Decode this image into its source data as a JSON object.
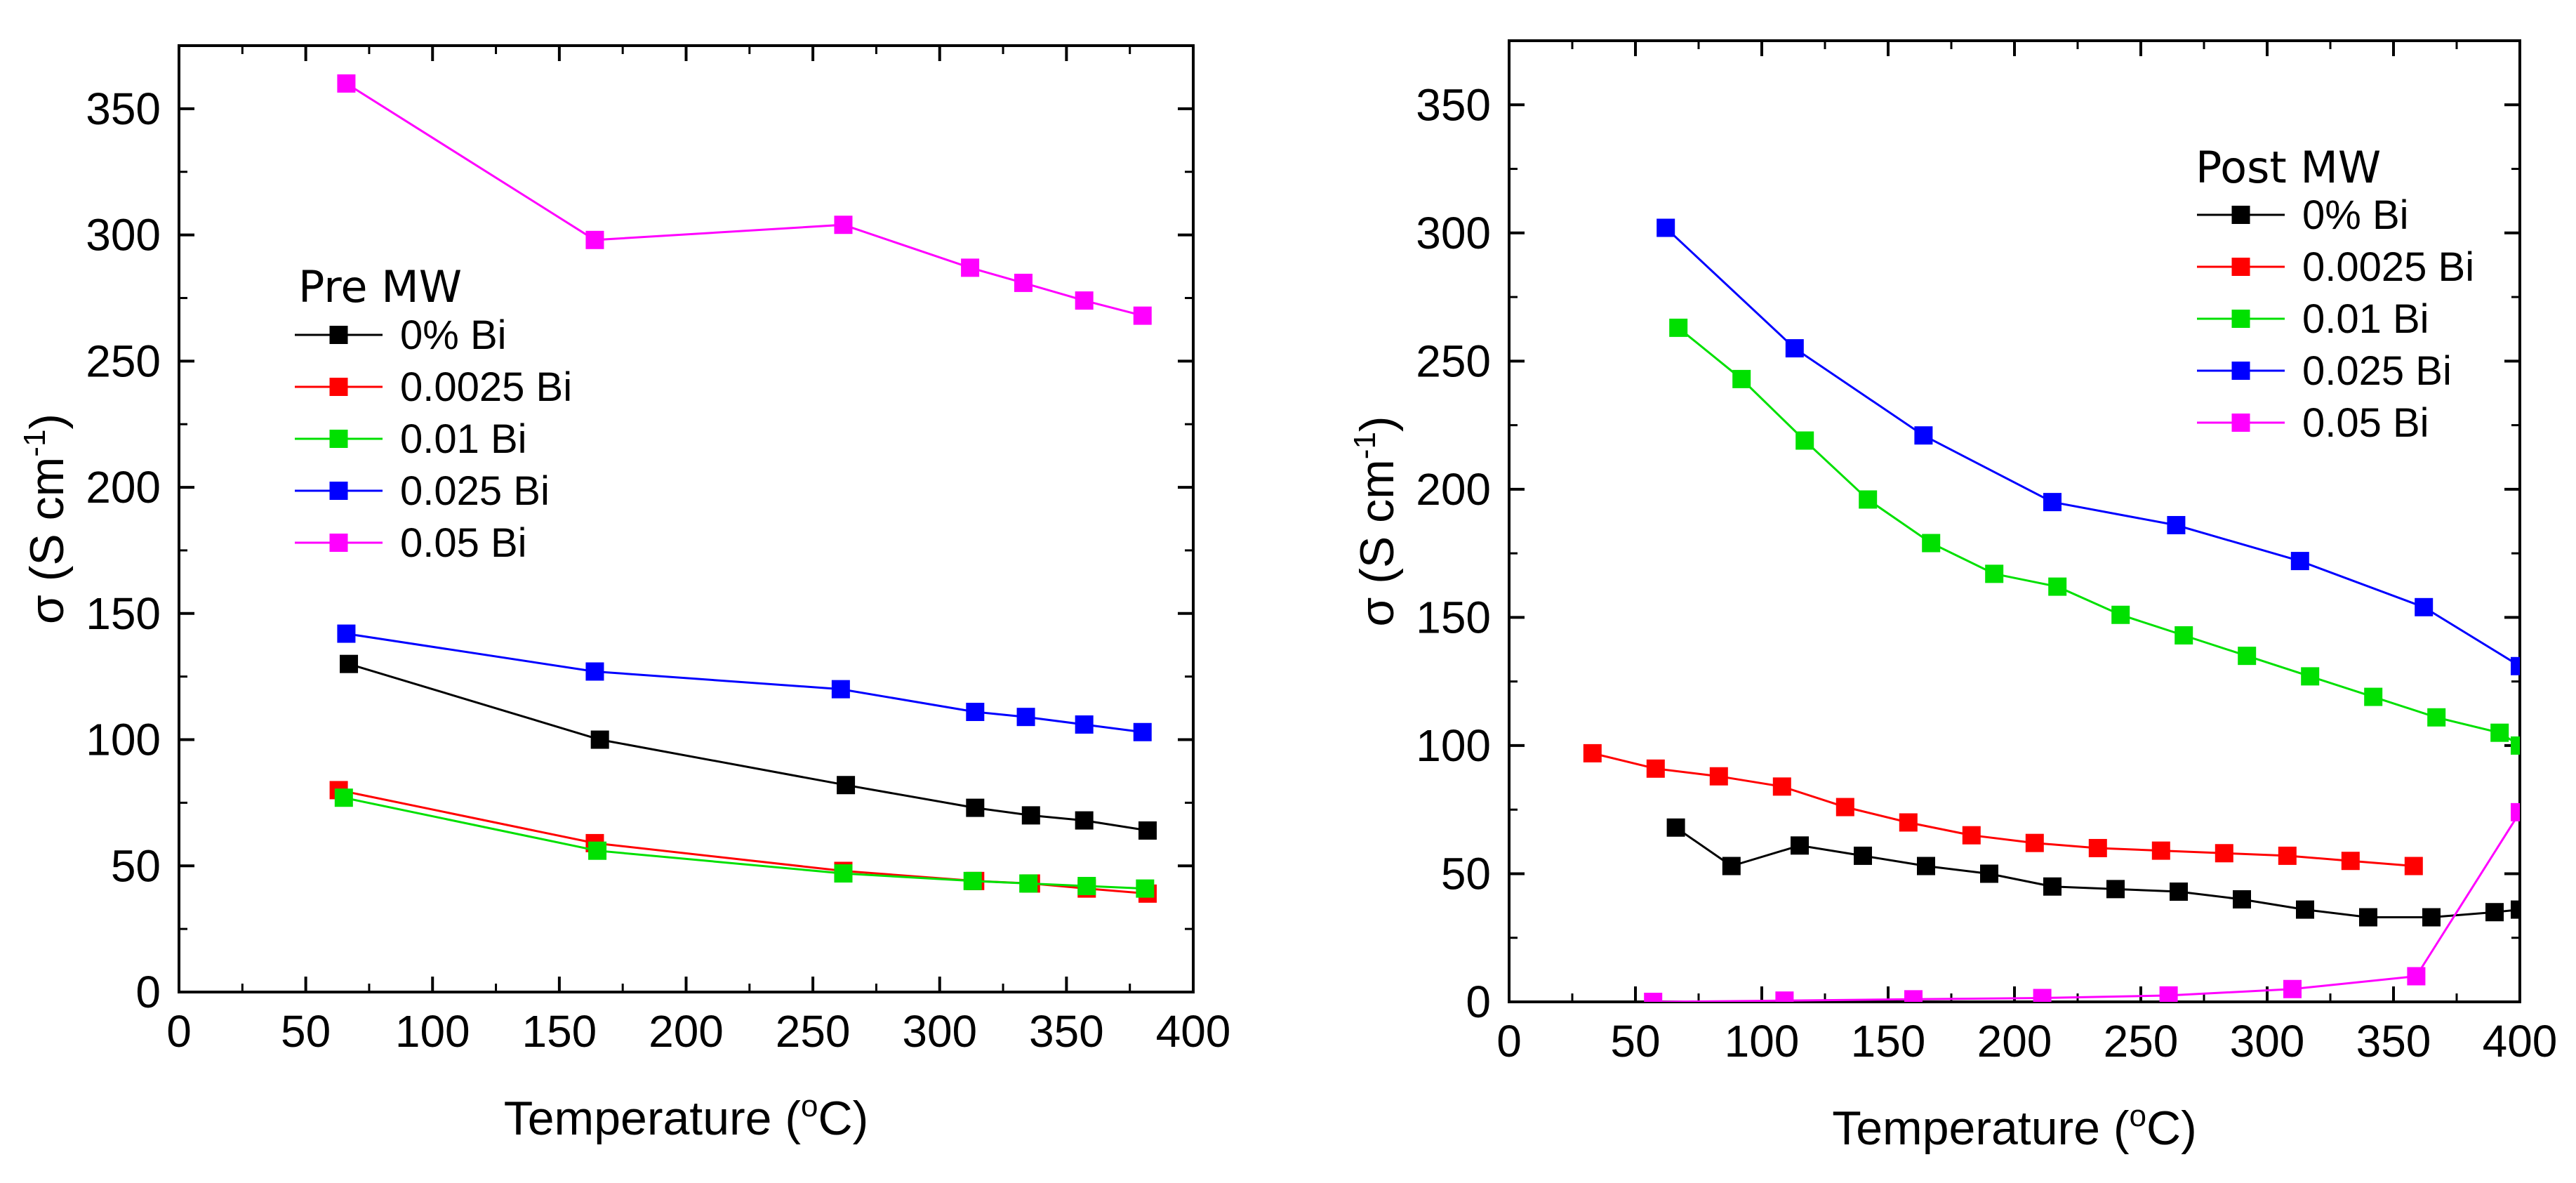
{
  "chart_data": [
    {
      "type": "line",
      "xlabel": "Temperature (",
      "xlabel_sup": "o",
      "xlabel_tail": "C)",
      "ylabel": "σ (S cm",
      "ylabel_sup": "-1",
      "ylabel_tail": ")",
      "xlim": [
        0,
        400
      ],
      "ylim": [
        0,
        375
      ],
      "xticks": [
        "0",
        "50",
        "100",
        "150",
        "200",
        "250",
        "300",
        "350",
        "400"
      ],
      "yticks": [
        "0",
        "50",
        "100",
        "150",
        "200",
        "250",
        "300",
        "350"
      ],
      "legend_title": "Pre MW",
      "legend_position": "upper-left",
      "series": [
        {
          "name": "0% Bi",
          "color": "#000000",
          "x": [
            67,
            166,
            263,
            314,
            336,
            357,
            382
          ],
          "y": [
            130,
            100,
            82,
            73,
            70,
            68,
            64
          ]
        },
        {
          "name": "0.0025 Bi",
          "color": "#ff0000",
          "x": [
            63,
            164,
            262,
            314,
            336,
            358,
            382
          ],
          "y": [
            80,
            59,
            48,
            44,
            43,
            41,
            39
          ]
        },
        {
          "name": "0.01 Bi",
          "color": "#00e000",
          "x": [
            65,
            165,
            262,
            313,
            335,
            358,
            381
          ],
          "y": [
            77,
            56,
            47,
            44,
            43,
            42,
            41
          ]
        },
        {
          "name": "0.025 Bi",
          "color": "#0000ff",
          "x": [
            66,
            164,
            261,
            314,
            334,
            357,
            380
          ],
          "y": [
            142,
            127,
            120,
            111,
            109,
            106,
            103
          ]
        },
        {
          "name": "0.05 Bi",
          "color": "#ff00ff",
          "x": [
            66,
            164,
            262,
            312,
            333,
            357,
            380
          ],
          "y": [
            360,
            298,
            304,
            287,
            281,
            274,
            268
          ]
        }
      ]
    },
    {
      "type": "line",
      "xlabel": "Temperature (",
      "xlabel_sup": "o",
      "xlabel_tail": "C)",
      "ylabel": "σ (S cm",
      "ylabel_sup": "-1",
      "ylabel_tail": ")",
      "xlim": [
        0,
        400
      ],
      "ylim": [
        0,
        375
      ],
      "xticks": [
        "0",
        "50",
        "100",
        "150",
        "200",
        "250",
        "300",
        "350",
        "400"
      ],
      "yticks": [
        "0",
        "50",
        "100",
        "150",
        "200",
        "250",
        "300",
        "350"
      ],
      "legend_title": "Post MW",
      "legend_position": "upper-right",
      "series": [
        {
          "name": "0% Bi",
          "color": "#000000",
          "x": [
            66,
            88,
            115,
            140,
            165,
            190,
            215,
            240,
            265,
            290,
            315,
            340,
            365,
            390,
            400
          ],
          "y": [
            68,
            53,
            61,
            57,
            53,
            50,
            45,
            44,
            43,
            40,
            36,
            33,
            33,
            35,
            36
          ]
        },
        {
          "name": "0.0025 Bi",
          "color": "#ff0000",
          "x": [
            33,
            58,
            83,
            108,
            133,
            158,
            183,
            208,
            233,
            258,
            283,
            308,
            333,
            358
          ],
          "y": [
            97,
            91,
            88,
            84,
            76,
            70,
            65,
            62,
            60,
            59,
            58,
            57,
            55,
            53
          ]
        },
        {
          "name": "0.01 Bi",
          "color": "#00e000",
          "x": [
            67,
            92,
            117,
            142,
            167,
            192,
            217,
            242,
            267,
            292,
            317,
            342,
            367,
            392,
            400
          ],
          "y": [
            263,
            243,
            219,
            196,
            179,
            167,
            162,
            151,
            143,
            135,
            127,
            119,
            111,
            105,
            100
          ]
        },
        {
          "name": "0.025 Bi",
          "color": "#0000ff",
          "x": [
            62,
            113,
            164,
            215,
            264,
            313,
            362,
            400
          ],
          "y": [
            302,
            255,
            221,
            195,
            186,
            172,
            154,
            131
          ]
        },
        {
          "name": "0.05 Bi",
          "color": "#ff00ff",
          "x": [
            57,
            109,
            160,
            211,
            261,
            310,
            359,
            400
          ],
          "y": [
            0,
            0.5,
            1,
            1.5,
            2.5,
            5,
            10,
            74
          ]
        }
      ]
    }
  ]
}
